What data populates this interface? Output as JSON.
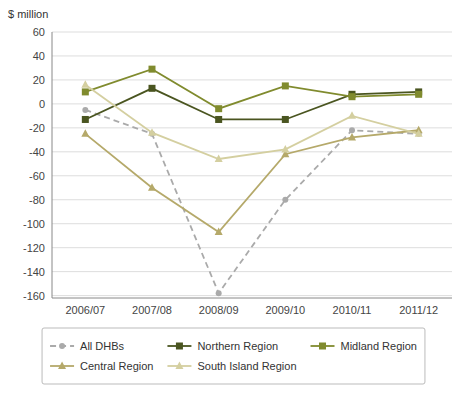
{
  "chart_data": {
    "type": "line",
    "y_label": "$ million",
    "categories": [
      "2006/07",
      "2007/08",
      "2008/09",
      "2009/10",
      "2010/11",
      "2011/12"
    ],
    "series": [
      {
        "name": "All DHBs",
        "color": "#aaaaaa",
        "marker": "circle",
        "line_style": "dashed",
        "values": [
          -5,
          -25,
          -158,
          -80,
          -22,
          -25
        ]
      },
      {
        "name": "Northern Region",
        "color": "#4a5520",
        "marker": "square",
        "line_style": "solid",
        "values": [
          -13,
          13,
          -13,
          -13,
          8,
          10
        ]
      },
      {
        "name": "Midland Region",
        "color": "#808b2e",
        "marker": "square",
        "line_style": "solid",
        "values": [
          10,
          29,
          -4,
          15,
          6,
          8
        ]
      },
      {
        "name": "Central Region",
        "color": "#b5a96a",
        "marker": "triangle",
        "line_style": "solid",
        "values": [
          -25,
          -70,
          -107,
          -42,
          -28,
          -22
        ]
      },
      {
        "name": "South Island Region",
        "color": "#d4cfa0",
        "marker": "triangle",
        "line_style": "solid",
        "values": [
          16,
          -24,
          -46,
          -38,
          -10,
          -25
        ]
      }
    ],
    "ylim": [
      -162,
      60
    ],
    "yticks": [
      -160,
      -140,
      -120,
      -100,
      -80,
      -60,
      -40,
      -20,
      0,
      20,
      40,
      60
    ],
    "grid": true,
    "legend": "bottom"
  }
}
